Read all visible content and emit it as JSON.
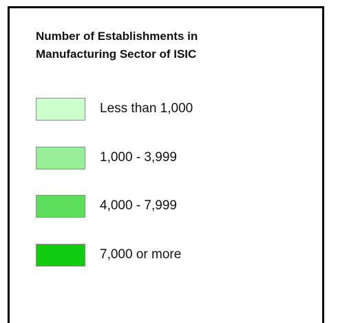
{
  "legend": {
    "title": [
      "Number of Establishments in",
      "Manufacturing Sector of ISIC"
    ],
    "items": [
      {
        "label": "Less than 1,000",
        "color": "#ccffcc"
      },
      {
        "label": "1,000 - 3,999",
        "color": "#99ee99"
      },
      {
        "label": "4,000 - 7,999",
        "color": "#5cdd5c"
      },
      {
        "label": "7,000 or more",
        "color": "#11cc11"
      }
    ]
  }
}
